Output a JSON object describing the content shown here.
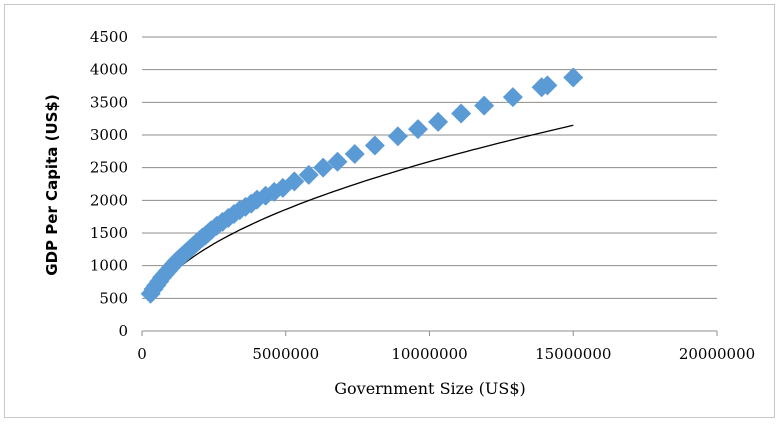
{
  "chart_data": {
    "type": "scatter",
    "title": "",
    "xlabel": "Government Size (US$)",
    "ylabel": "GDP Per Capita (US$)",
    "xlim": [
      0,
      20000000
    ],
    "ylim": [
      0,
      4500
    ],
    "x_ticks": [
      0,
      5000000,
      10000000,
      15000000,
      20000000
    ],
    "x_tick_labels": [
      "0",
      "5000000",
      "10000000",
      "15000000",
      "20000000"
    ],
    "y_ticks": [
      0,
      500,
      1000,
      1500,
      2000,
      2500,
      3000,
      3500,
      4000,
      4500
    ],
    "y_tick_labels": [
      "0",
      "500",
      "1000",
      "1500",
      "2000",
      "2500",
      "3000",
      "3500",
      "4000",
      "4500"
    ],
    "grid": "horizontal",
    "legend": "none",
    "marker": "diamond",
    "marker_color": "#5b9bd5",
    "trendline": {
      "type": "power",
      "coefficient": 1.15,
      "exponent": 0.479,
      "color": "#000000"
    },
    "series": [
      {
        "x": [
          300000,
          400000,
          500000,
          600000,
          700000,
          800000,
          900000,
          1000000,
          1100000,
          1200000,
          1300000,
          1400000,
          1500000,
          1600000,
          1700000,
          1800000,
          1900000,
          2000000,
          2100000,
          2200000,
          2300000,
          2400000,
          2600000,
          2800000,
          3000000,
          3200000,
          3400000,
          3600000,
          3800000,
          4000000,
          4300000,
          4600000,
          4900000,
          5300000,
          5800000,
          6300000,
          6800000,
          7400000,
          8100000,
          8900000,
          9600000,
          10300000,
          11100000,
          11900000,
          12900000,
          13900000,
          14100000,
          15000000
        ],
        "y": [
          570,
          640,
          700,
          760,
          820,
          870,
          920,
          970,
          1020,
          1070,
          1110,
          1150,
          1190,
          1230,
          1270,
          1310,
          1350,
          1390,
          1430,
          1460,
          1500,
          1540,
          1610,
          1670,
          1730,
          1790,
          1850,
          1900,
          1950,
          2010,
          2070,
          2130,
          2190,
          2290,
          2390,
          2500,
          2590,
          2710,
          2840,
          2980,
          3090,
          3200,
          3330,
          3450,
          3580,
          3730,
          3760,
          3880
        ]
      }
    ]
  }
}
